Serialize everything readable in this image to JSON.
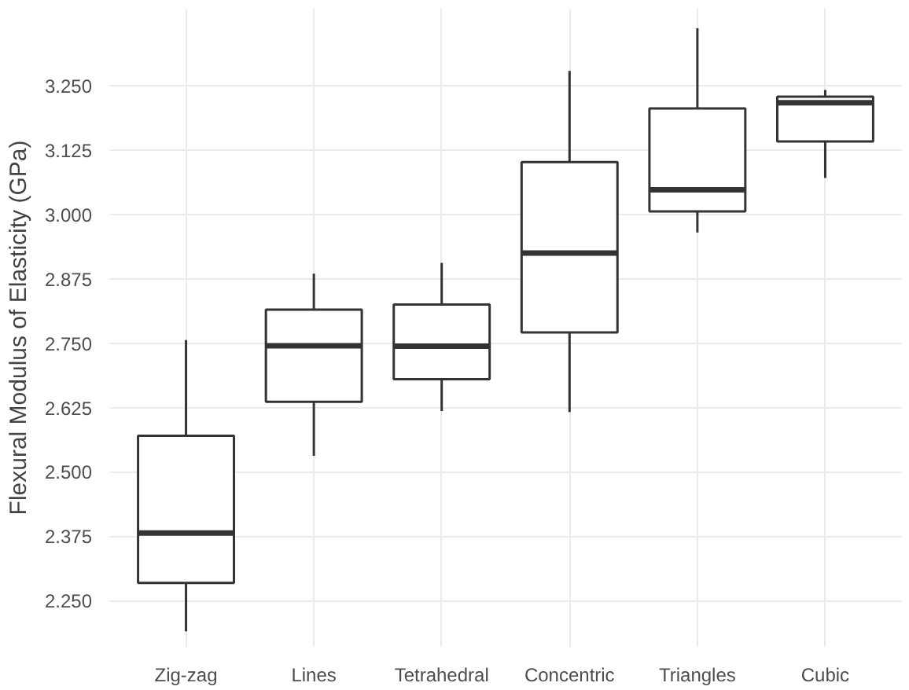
{
  "chart_data": {
    "type": "box",
    "ylabel": "Flexural Modulus of Elasticity (GPa)",
    "categories": [
      "Zig-zag",
      "Lines",
      "Tetrahedral",
      "Concentric",
      "Triangles",
      "Cubic"
    ],
    "boxes": [
      {
        "low": 2.19,
        "q1": 2.284,
        "median": 2.381,
        "q3": 2.57,
        "high": 2.756
      },
      {
        "low": 2.531,
        "q1": 2.636,
        "median": 2.745,
        "q3": 2.815,
        "high": 2.885
      },
      {
        "low": 2.618,
        "q1": 2.68,
        "median": 2.744,
        "q3": 2.825,
        "high": 2.906
      },
      {
        "low": 2.616,
        "q1": 2.771,
        "median": 2.925,
        "q3": 3.102,
        "high": 3.279
      },
      {
        "low": 2.965,
        "q1": 3.006,
        "median": 3.048,
        "q3": 3.206,
        "high": 3.362
      },
      {
        "low": 3.071,
        "q1": 3.142,
        "median": 3.217,
        "q3": 3.229,
        "high": 3.242
      }
    ],
    "color": "#333333",
    "ylim": [
      2.16,
      3.4
    ],
    "yticks": [
      {
        "value": 2.25,
        "label": "2.250"
      },
      {
        "value": 2.375,
        "label": "2.375"
      },
      {
        "value": 2.5,
        "label": "2.500"
      },
      {
        "value": 2.625,
        "label": "2.625"
      },
      {
        "value": 2.75,
        "label": "2.750"
      },
      {
        "value": 2.875,
        "label": "2.875"
      },
      {
        "value": 3.0,
        "label": "3.000"
      },
      {
        "value": 3.125,
        "label": "3.125"
      },
      {
        "value": 3.25,
        "label": "3.250"
      }
    ],
    "grid": true
  }
}
